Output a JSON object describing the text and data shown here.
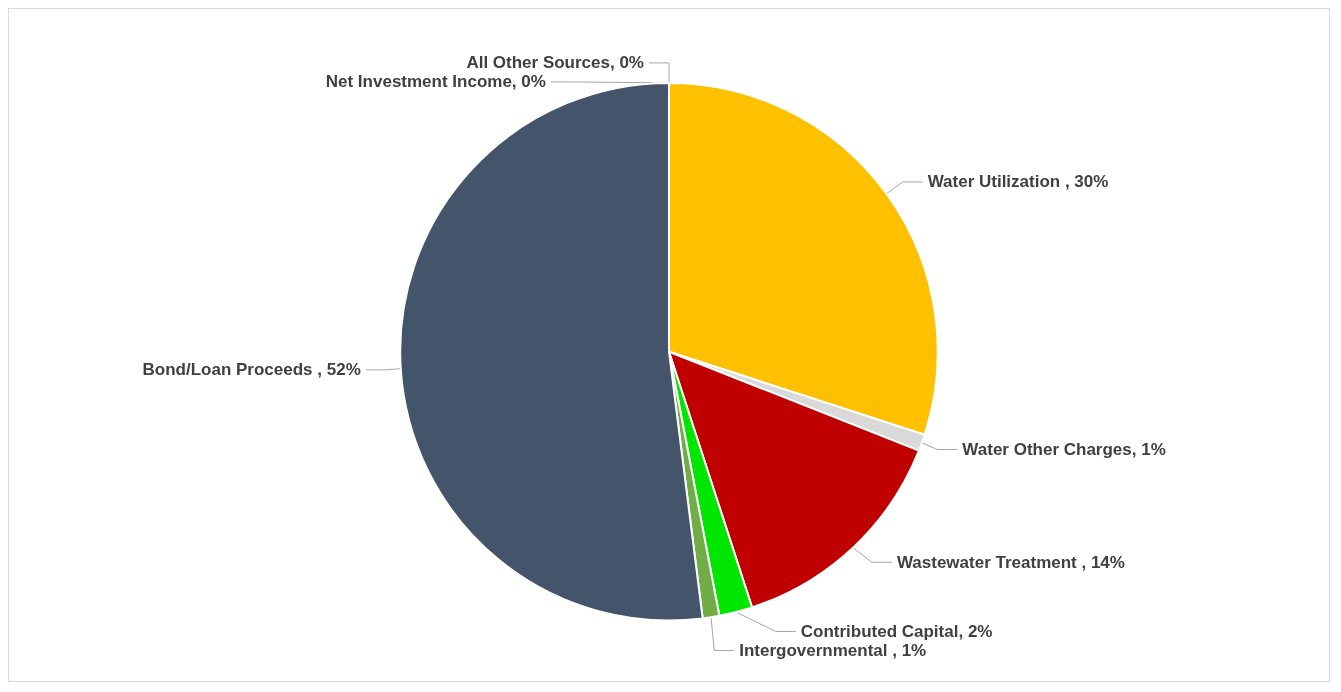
{
  "chart_data": {
    "type": "pie",
    "categories": [
      "All Other Sources",
      "Water Utilization ",
      "Water Other Charges",
      "Wastewater Treatment ",
      "Contributed Capital",
      "Intergovernmental ",
      "Bond/Loan Proceeds ",
      "Net Investment Income"
    ],
    "values": [
      0,
      30,
      1,
      14,
      2,
      1,
      52,
      0
    ],
    "colors": [
      "#5b9bd5",
      "#ffc000",
      "#d9d9d9",
      "#c00000",
      "#00e600",
      "#70ad47",
      "#44546a",
      "#a5a5a5"
    ],
    "value_labels": [
      ", 0%",
      ", 30%",
      ", 1%",
      ", 14%",
      ", 2%",
      ", 1%",
      ", 52%",
      ", 0%"
    ]
  }
}
